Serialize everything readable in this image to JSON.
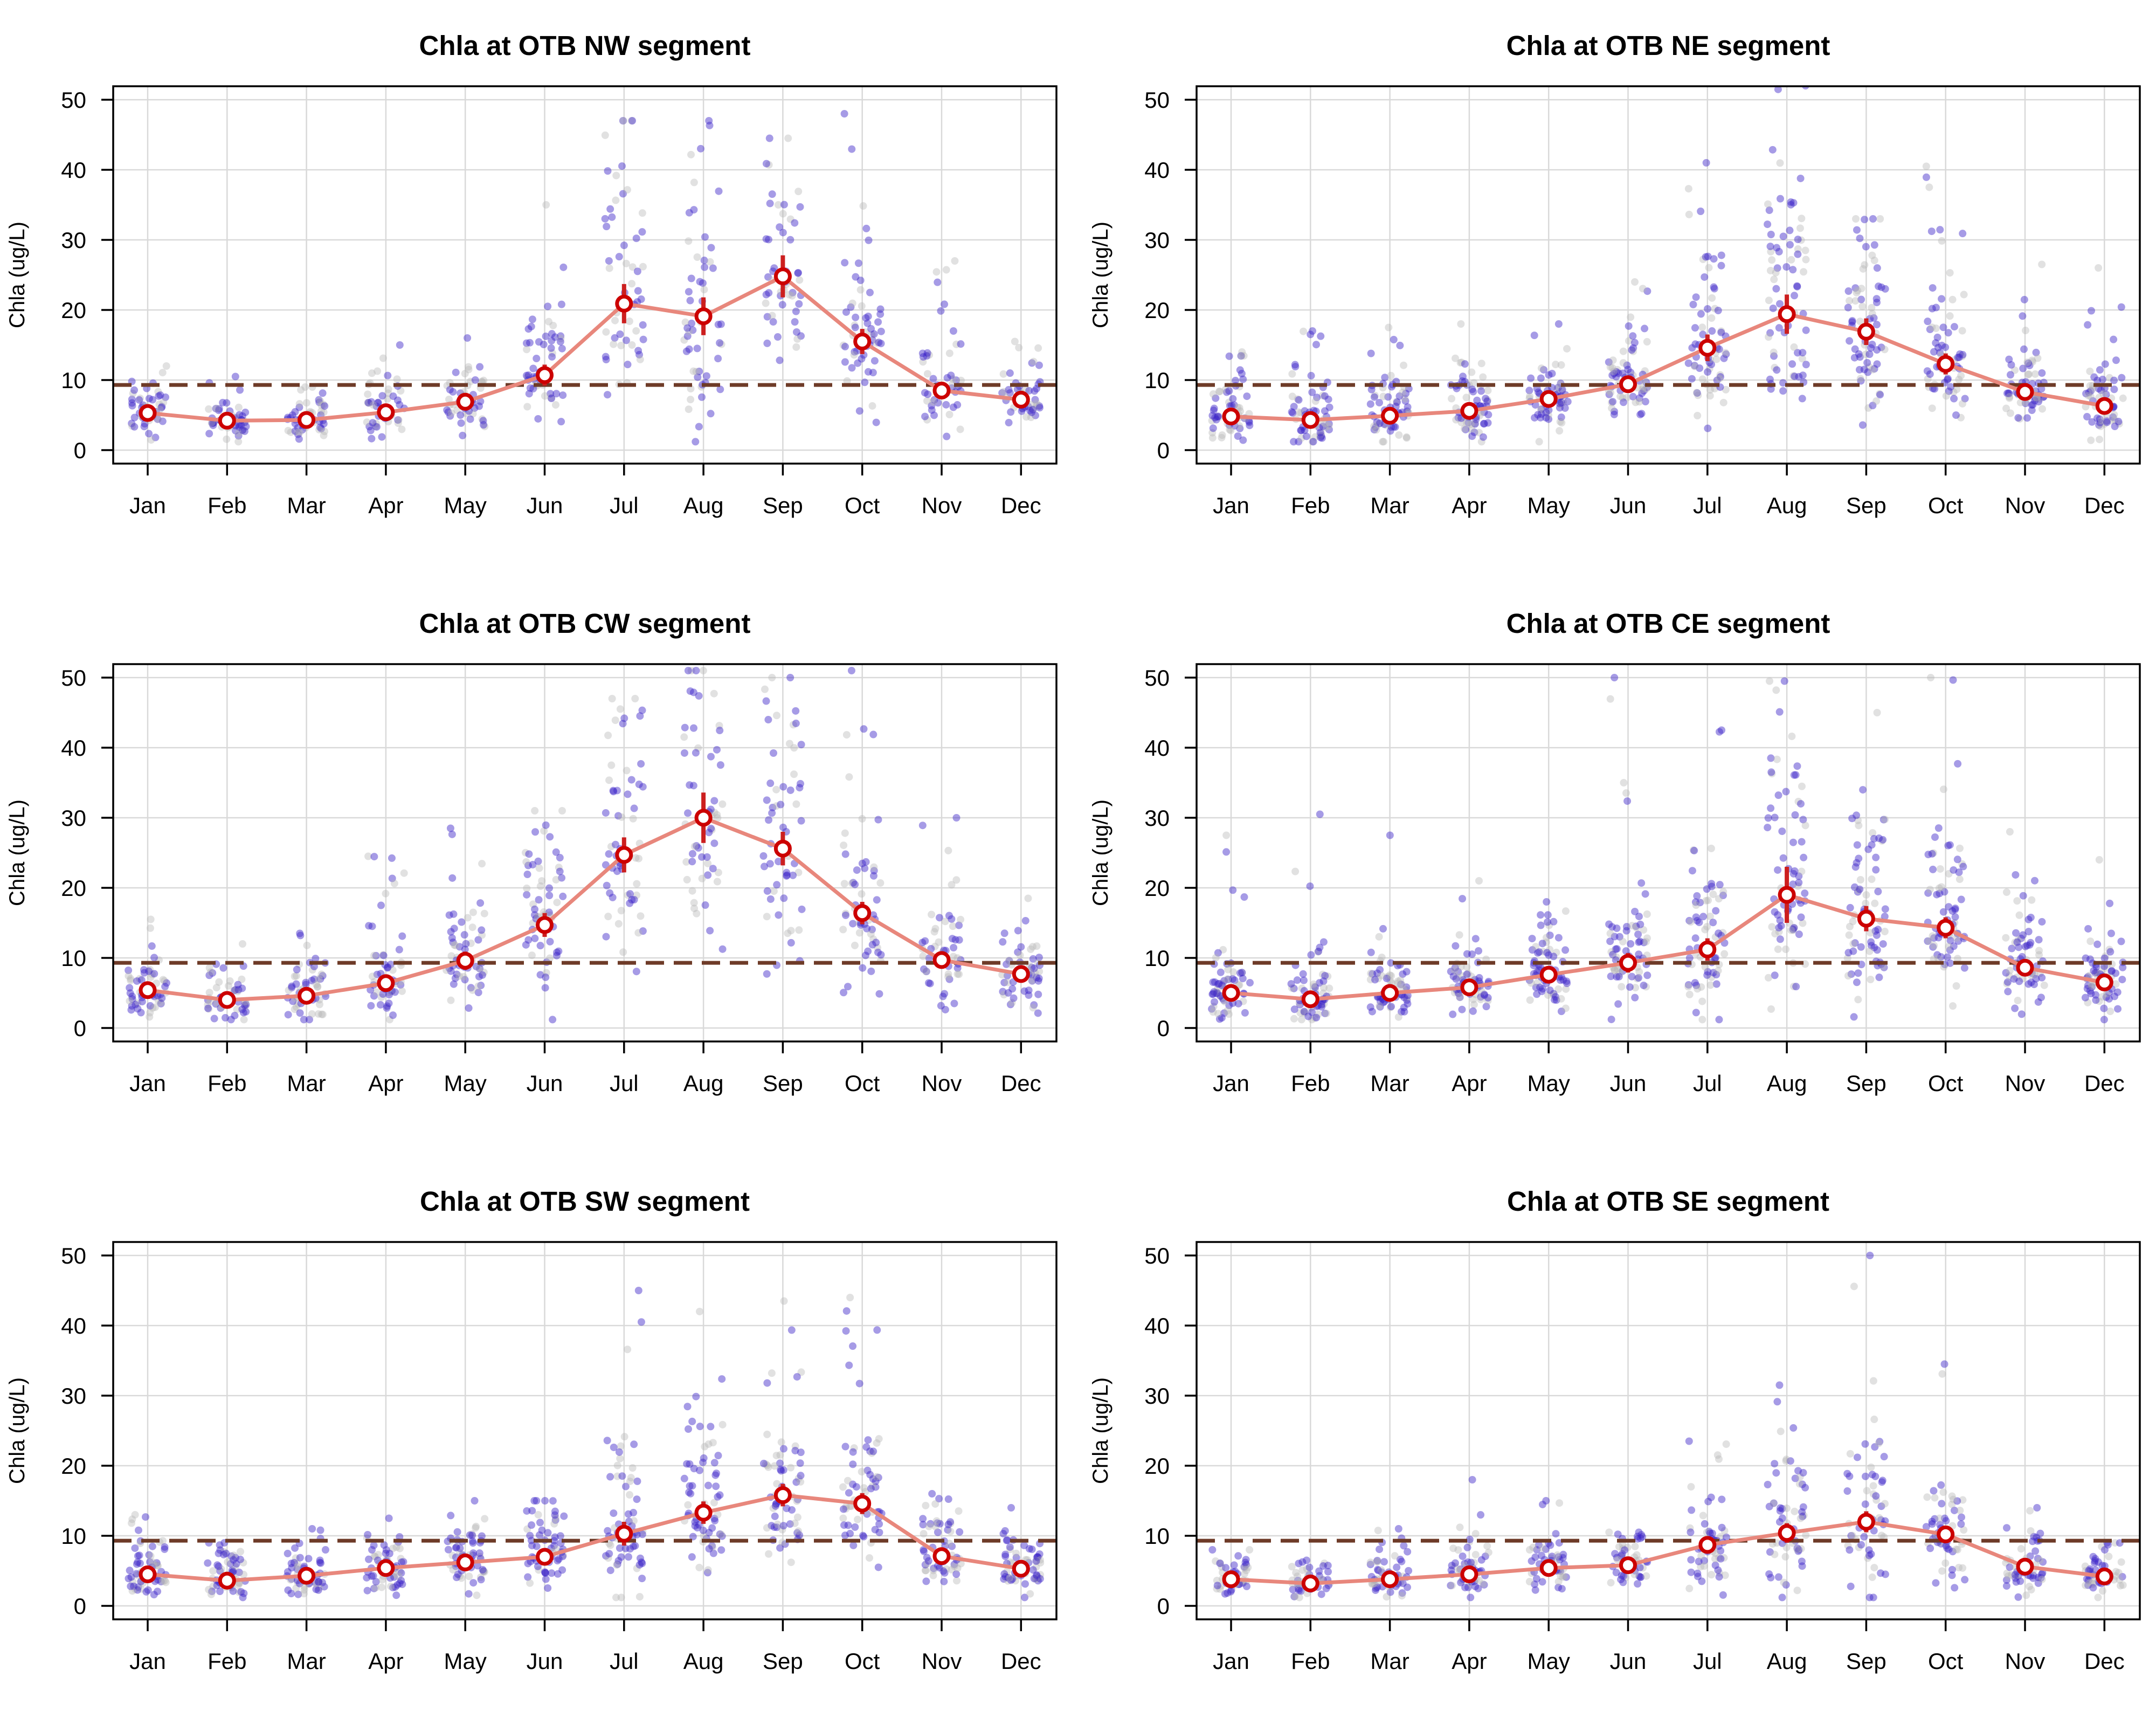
{
  "chart_data": [
    {
      "type": "scatter",
      "title": "Chla at OTB NW segment",
      "ylabel": "Chla (ug/L)",
      "xlabel": "",
      "categories": [
        "Jan",
        "Feb",
        "Mar",
        "Apr",
        "May",
        "Jun",
        "Jul",
        "Aug",
        "Sep",
        "Oct",
        "Nov",
        "Dec"
      ],
      "ylim": [
        0,
        50
      ],
      "yticks": [
        0,
        10,
        20,
        30,
        40,
        50
      ],
      "grid": true,
      "threshold": 9.3,
      "series": [
        {
          "kind": "monthly-mean",
          "values": [
            5.3,
            4.2,
            4.3,
            5.4,
            6.9,
            10.7,
            20.9,
            19.1,
            24.8,
            15.5,
            8.5,
            7.2
          ],
          "ci_halfwidth": [
            0.7,
            0.5,
            0.5,
            0.7,
            0.9,
            1.5,
            2.8,
            2.7,
            3.0,
            1.8,
            1.1,
            0.8
          ]
        },
        {
          "kind": "observations",
          "center": [
            5.3,
            4.2,
            4.3,
            5.4,
            6.9,
            10.7,
            20.9,
            19.1,
            24.8,
            15.5,
            8.5,
            7.2
          ],
          "spread": [
            2.2,
            1.8,
            1.8,
            2.3,
            2.6,
            5.5,
            10,
            9.5,
            8,
            6,
            3.4,
            2.3
          ],
          "max": [
            12,
            10.5,
            9,
            15,
            16,
            35,
            47,
            47,
            44.5,
            48,
            27,
            15.5
          ],
          "n": [
            50,
            50,
            50,
            50,
            50,
            55,
            55,
            55,
            55,
            55,
            50,
            50
          ]
        }
      ]
    },
    {
      "type": "scatter",
      "title": "Chla at OTB NE segment",
      "ylabel": "Chla (ug/L)",
      "xlabel": "",
      "categories": [
        "Jan",
        "Feb",
        "Mar",
        "Apr",
        "May",
        "Jun",
        "Jul",
        "Aug",
        "Sep",
        "Oct",
        "Nov",
        "Dec"
      ],
      "ylim": [
        0,
        50
      ],
      "yticks": [
        0,
        10,
        20,
        30,
        40,
        50
      ],
      "grid": true,
      "threshold": 9.3,
      "series": [
        {
          "kind": "monthly-mean",
          "values": [
            4.8,
            4.3,
            4.9,
            5.6,
            7.3,
            9.4,
            14.6,
            19.4,
            16.9,
            12.3,
            8.3,
            6.3
          ],
          "ci_halfwidth": [
            0.6,
            0.5,
            0.6,
            0.7,
            0.9,
            1.2,
            1.9,
            2.8,
            1.9,
            1.5,
            1.0,
            0.9
          ]
        },
        {
          "kind": "observations",
          "center": [
            4.8,
            4.3,
            4.9,
            5.6,
            7.3,
            9.4,
            14.6,
            19.4,
            16.9,
            12.3,
            8.3,
            6.3
          ],
          "spread": [
            2.2,
            2.4,
            2.4,
            2.5,
            3,
            4,
            7,
            11,
            7.5,
            5,
            3.5,
            3
          ],
          "max": [
            14,
            17,
            17.5,
            18,
            18,
            24,
            41,
            52,
            33,
            40.5,
            26.5,
            26
          ],
          "n": [
            65,
            65,
            65,
            65,
            65,
            70,
            70,
            75,
            70,
            70,
            65,
            60
          ]
        }
      ]
    },
    {
      "type": "scatter",
      "title": "Chla at OTB CW segment",
      "ylabel": "Chla (ug/L)",
      "xlabel": "",
      "categories": [
        "Jan",
        "Feb",
        "Mar",
        "Apr",
        "May",
        "Jun",
        "Jul",
        "Aug",
        "Sep",
        "Oct",
        "Nov",
        "Dec"
      ],
      "ylim": [
        0,
        50
      ],
      "yticks": [
        0,
        10,
        20,
        30,
        40,
        50
      ],
      "grid": true,
      "threshold": 9.3,
      "series": [
        {
          "kind": "monthly-mean",
          "values": [
            5.4,
            4.0,
            4.6,
            6.4,
            9.6,
            14.7,
            24.7,
            30.0,
            25.6,
            16.4,
            9.7,
            7.7
          ],
          "ci_halfwidth": [
            0.8,
            0.6,
            0.6,
            0.9,
            1.3,
            1.7,
            2.5,
            3.6,
            2.4,
            1.6,
            1.1,
            0.9
          ]
        },
        {
          "kind": "observations",
          "center": [
            5.4,
            4.0,
            4.6,
            6.4,
            9.6,
            14.7,
            24.7,
            30.0,
            25.6,
            16.4,
            9.7,
            7.7
          ],
          "spread": [
            2.6,
            2.2,
            2.4,
            3.5,
            5,
            7,
            11,
            13,
            12,
            7,
            4.5,
            3.5
          ],
          "max": [
            15.5,
            12,
            13.5,
            24.5,
            28.5,
            31,
            47,
            51,
            50,
            51,
            30,
            18.5
          ],
          "n": [
            55,
            55,
            55,
            55,
            60,
            60,
            60,
            60,
            60,
            60,
            55,
            55
          ]
        }
      ]
    },
    {
      "type": "scatter",
      "title": "Chla at OTB CE segment",
      "ylabel": "Chla (ug/L)",
      "xlabel": "",
      "categories": [
        "Jan",
        "Feb",
        "Mar",
        "Apr",
        "May",
        "Jun",
        "Jul",
        "Aug",
        "Sep",
        "Oct",
        "Nov",
        "Dec"
      ],
      "ylim": [
        0,
        50
      ],
      "yticks": [
        0,
        10,
        20,
        30,
        40,
        50
      ],
      "grid": true,
      "threshold": 9.3,
      "series": [
        {
          "kind": "monthly-mean",
          "values": [
            5.0,
            4.1,
            5.0,
            5.8,
            7.6,
            9.3,
            11.2,
            19.0,
            15.6,
            14.3,
            8.6,
            6.5
          ],
          "ci_halfwidth": [
            0.6,
            0.5,
            0.6,
            0.7,
            0.9,
            1.4,
            1.6,
            4.0,
            1.8,
            1.5,
            1.0,
            0.8
          ]
        },
        {
          "kind": "observations",
          "center": [
            5.0,
            4.1,
            5.0,
            5.8,
            7.6,
            9.3,
            11.2,
            19.0,
            15.6,
            14.3,
            8.6,
            6.5
          ],
          "spread": [
            2.5,
            2.2,
            2.5,
            2.6,
            3.2,
            4.8,
            6.5,
            9.5,
            8,
            6,
            3.8,
            3
          ],
          "max": [
            27.5,
            30.5,
            27.5,
            21,
            18,
            50,
            42.5,
            49.5,
            45,
            50,
            28,
            24
          ],
          "n": [
            70,
            70,
            70,
            70,
            70,
            70,
            75,
            75,
            75,
            75,
            70,
            70
          ]
        }
      ]
    },
    {
      "type": "scatter",
      "title": "Chla at OTB SW segment",
      "ylabel": "Chla (ug/L)",
      "xlabel": "",
      "categories": [
        "Jan",
        "Feb",
        "Mar",
        "Apr",
        "May",
        "Jun",
        "Jul",
        "Aug",
        "Sep",
        "Oct",
        "Nov",
        "Dec"
      ],
      "ylim": [
        0,
        50
      ],
      "yticks": [
        0,
        10,
        20,
        30,
        40,
        50
      ],
      "grid": true,
      "threshold": 9.3,
      "series": [
        {
          "kind": "monthly-mean",
          "values": [
            4.5,
            3.6,
            4.3,
            5.4,
            6.2,
            7.0,
            10.3,
            13.3,
            15.8,
            14.6,
            7.1,
            5.3
          ],
          "ci_halfwidth": [
            0.5,
            0.4,
            0.5,
            0.6,
            0.7,
            0.8,
            1.7,
            1.6,
            1.6,
            1.5,
            0.9,
            0.6
          ]
        },
        {
          "kind": "observations",
          "center": [
            4.5,
            3.6,
            4.3,
            5.4,
            6.2,
            7.0,
            10.3,
            13.3,
            15.8,
            14.6,
            7.1,
            5.3
          ],
          "spread": [
            2,
            1.8,
            2,
            2.3,
            2.6,
            3,
            5.5,
            6,
            6.5,
            5.5,
            3,
            2.2
          ],
          "max": [
            13,
            9,
            11,
            12.5,
            15,
            15,
            45,
            42,
            43.5,
            44,
            16,
            14
          ],
          "n": [
            60,
            60,
            60,
            60,
            60,
            65,
            65,
            65,
            65,
            65,
            60,
            60
          ]
        }
      ]
    },
    {
      "type": "scatter",
      "title": "Chla at OTB SE segment",
      "ylabel": "Chla (ug/L)",
      "xlabel": "",
      "categories": [
        "Jan",
        "Feb",
        "Mar",
        "Apr",
        "May",
        "Jun",
        "Jul",
        "Aug",
        "Sep",
        "Oct",
        "Nov",
        "Dec"
      ],
      "ylim": [
        0,
        50
      ],
      "yticks": [
        0,
        10,
        20,
        30,
        40,
        50
      ],
      "grid": true,
      "threshold": 9.3,
      "series": [
        {
          "kind": "monthly-mean",
          "values": [
            3.8,
            3.2,
            3.8,
            4.5,
            5.4,
            5.8,
            8.7,
            10.4,
            12.0,
            10.2,
            5.6,
            4.2
          ],
          "ci_halfwidth": [
            0.4,
            0.3,
            0.4,
            0.5,
            0.6,
            0.6,
            1.2,
            1.4,
            1.5,
            1.2,
            0.6,
            0.4
          ]
        },
        {
          "kind": "observations",
          "center": [
            3.8,
            3.2,
            3.8,
            4.5,
            5.4,
            5.8,
            8.7,
            10.4,
            12.0,
            10.2,
            5.6,
            4.2
          ],
          "spread": [
            1.5,
            1.3,
            1.6,
            1.8,
            2.3,
            2.2,
            4.5,
            6,
            6.5,
            4,
            2.4,
            1.7
          ],
          "max": [
            8,
            6.5,
            11,
            18,
            15,
            10.5,
            23.5,
            31.5,
            50,
            34.5,
            14,
            9
          ],
          "n": [
            55,
            55,
            55,
            55,
            55,
            55,
            60,
            60,
            60,
            60,
            55,
            55
          ]
        }
      ]
    }
  ],
  "colors": {
    "mean_line": "#e8877c",
    "mean_marker_stroke": "#cc0000",
    "mean_marker_fill": "#ffffff",
    "ci_bar": "#cc1f1f",
    "points_recent": "#3a22c8",
    "points_old": "#b5b5b5",
    "threshold_line": "#6e3b28",
    "grid": "#d9d9d9",
    "axis": "#000000"
  }
}
